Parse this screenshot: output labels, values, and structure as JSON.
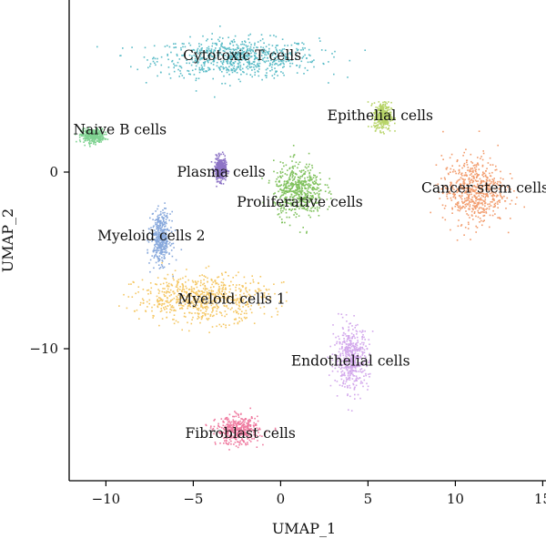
{
  "chart_data": {
    "type": "scatter",
    "title": "",
    "xlabel": "UMAP_1",
    "ylabel": "UMAP_2",
    "xlim": [
      -12.5,
      15.5
    ],
    "ylim": [
      -17.5,
      9.5
    ],
    "x_ticks": [
      -10,
      -5,
      0,
      5,
      10,
      15
    ],
    "y_ticks": [
      0,
      -10
    ],
    "x_tick_labels": [
      "−10",
      "−5",
      "0",
      "5",
      "10",
      "15"
    ],
    "y_tick_labels": [
      "0",
      "−10"
    ],
    "legend": "none (labels placed on clusters)",
    "grid": false,
    "clusters": [
      {
        "name": "Cytotoxic T cells",
        "color": "#5bbcc7",
        "center": [
          -2.5,
          6.5
        ],
        "spread": [
          4.2,
          1.0
        ],
        "label_pos": [
          -2.2,
          6.6
        ]
      },
      {
        "name": "Naive B cells",
        "color": "#7fd291",
        "center": [
          -10.8,
          2.1
        ],
        "spread": [
          0.6,
          0.35
        ],
        "label_pos": [
          -9.2,
          2.4
        ]
      },
      {
        "name": "Plasma cells",
        "color": "#8e74c6",
        "center": [
          -3.5,
          0.2
        ],
        "spread": [
          0.3,
          0.6
        ],
        "label_pos": [
          -3.4,
          0.0
        ]
      },
      {
        "name": "Epithelial cells",
        "color": "#b7d468",
        "center": [
          5.8,
          3.2
        ],
        "spread": [
          0.45,
          0.7
        ],
        "label_pos": [
          5.7,
          3.2
        ]
      },
      {
        "name": "Cancer stem cells",
        "color": "#f29c6d",
        "center": [
          11.0,
          -1.0
        ],
        "spread": [
          1.6,
          1.7
        ],
        "label_pos": [
          11.7,
          -0.9
        ]
      },
      {
        "name": "Proliferative cells",
        "color": "#7fc15c",
        "center": [
          1.0,
          -1.0
        ],
        "spread": [
          1.3,
          1.4
        ],
        "label_pos": [
          1.1,
          -1.7
        ]
      },
      {
        "name": "Myeloid cells 2",
        "color": "#88a9dc",
        "center": [
          -6.9,
          -3.7
        ],
        "spread": [
          0.5,
          1.3
        ],
        "label_pos": [
          -7.4,
          -3.6
        ]
      },
      {
        "name": "Myeloid cells 1",
        "color": "#f5c764",
        "center": [
          -4.5,
          -7.1
        ],
        "spread": [
          3.4,
          1.2
        ],
        "label_pos": [
          -2.8,
          -7.2
        ]
      },
      {
        "name": "Endothelial cells",
        "color": "#d3a8ec",
        "center": [
          4.0,
          -10.5
        ],
        "spread": [
          0.9,
          1.6
        ],
        "label_pos": [
          4.0,
          -10.7
        ]
      },
      {
        "name": "Fibroblast cells",
        "color": "#ef7ba0",
        "center": [
          -2.5,
          -14.6
        ],
        "spread": [
          1.1,
          0.7
        ],
        "label_pos": [
          -2.3,
          -14.8
        ]
      }
    ]
  }
}
